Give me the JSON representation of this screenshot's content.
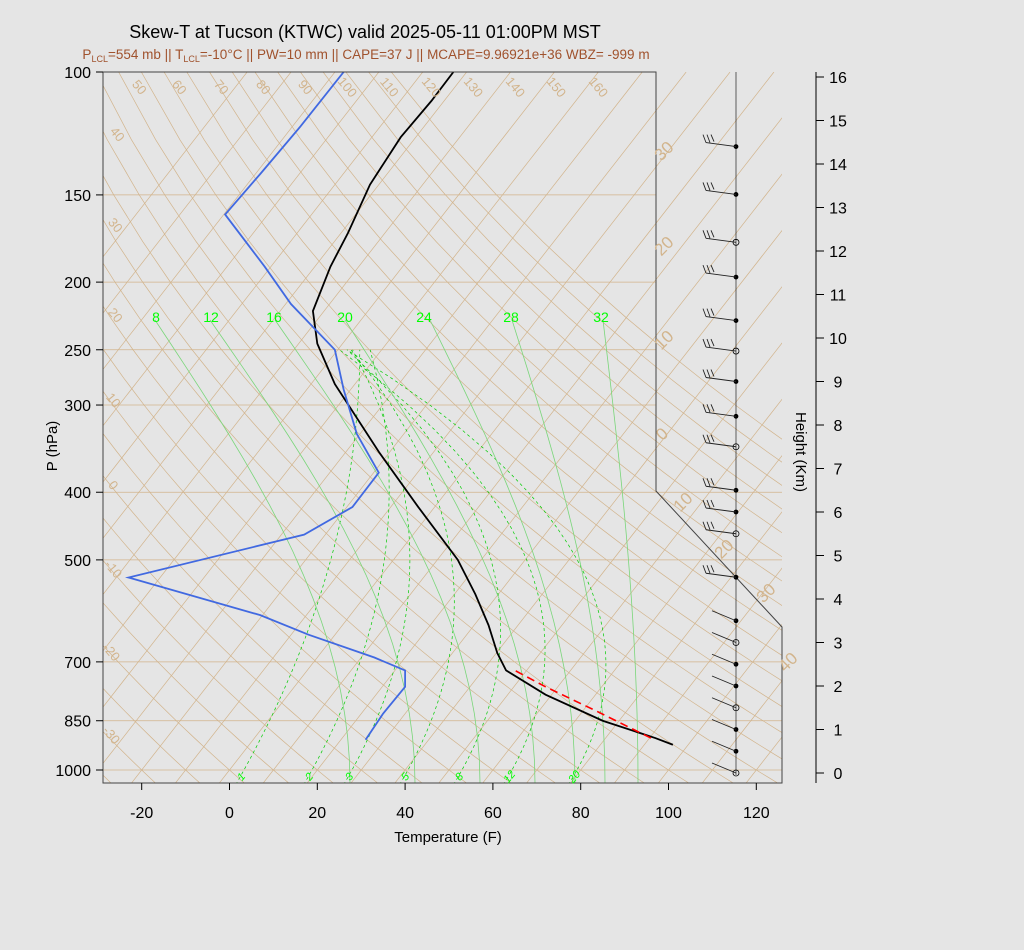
{
  "colors": {
    "background": "#e5e5e5",
    "isotherm": "#d2b48c",
    "isobar": "#d2b48c",
    "dry_adiabat": "#d2b48c",
    "moist_adiabat": "#7ad67a",
    "mixing_ratio": "#00cc00",
    "temperature": "#000000",
    "dewpoint": "#4169e1",
    "parcel": "#ff0000",
    "subtitle": "#a0522d"
  },
  "chart_data": {
    "type": "line",
    "title": "Skew-T at Tucson (KTWC) valid 2025-05-11 01:00PM MST",
    "subtitle": {
      "p_lcl_sym": "P",
      "p_lcl_sub": "LCL",
      "p_lcl_val": "=554 mb",
      "sep1": " || ",
      "t_lcl_sym": "T",
      "t_lcl_sub": "LCL",
      "t_lcl_val": "=-10°C",
      "rest": " || PW=10 mm || CAPE=37 J || MCAPE=9.96921e+36 WBZ= -999 m"
    },
    "xlabel": "Temperature (F)",
    "ylabel": "P (hPa)",
    "y2label": "Height (Km)",
    "x_ticks": [
      "-20",
      "0",
      "20",
      "40",
      "60",
      "80",
      "100",
      "120"
    ],
    "x_tick_values": [
      -20,
      0,
      20,
      40,
      60,
      80,
      100,
      120
    ],
    "y_ticks": [
      "100",
      "150",
      "200",
      "250",
      "300",
      "400",
      "500",
      "700",
      "850",
      "1000"
    ],
    "y_tick_values": [
      100,
      150,
      200,
      250,
      300,
      400,
      500,
      700,
      850,
      1000
    ],
    "height_ticks": [
      "0",
      "1",
      "2",
      "3",
      "4",
      "5",
      "6",
      "7",
      "8",
      "9",
      "10",
      "11",
      "12",
      "13",
      "14",
      "15",
      "16"
    ],
    "height_tick_values": [
      0,
      1,
      2,
      3,
      4,
      5,
      6,
      7,
      8,
      9,
      10,
      11,
      12,
      13,
      14,
      15,
      16
    ],
    "xlim": [
      -28,
      125
    ],
    "ylim": [
      1050,
      100
    ],
    "isotherm_labels": [
      "50",
      "60",
      "70",
      "80",
      "90",
      "100",
      "110",
      "120",
      "130",
      "140",
      "150",
      "160",
      "40",
      "30",
      "20",
      "10",
      "0",
      "-10",
      "-20",
      "-30"
    ],
    "isotherm_right_labels": [
      "30",
      "20",
      "10",
      "0",
      "10",
      "20",
      "30",
      "40"
    ],
    "mixing_ratio_top_labels": [
      "8",
      "12",
      "16",
      "20",
      "24",
      "28",
      "32"
    ],
    "mixing_ratio_bottom_labels": [
      "1",
      "2",
      "3",
      "5",
      "8",
      "12",
      "20"
    ],
    "series": [
      {
        "name": "temperature",
        "points": [
          [
            101,
            920
          ],
          [
            97,
            900
          ],
          [
            85,
            850
          ],
          [
            72,
            780
          ],
          [
            63,
            720
          ],
          [
            61,
            680
          ],
          [
            59,
            620
          ],
          [
            56,
            560
          ],
          [
            52,
            500
          ],
          [
            43,
            420
          ],
          [
            34,
            350
          ],
          [
            24,
            280
          ],
          [
            20,
            245
          ],
          [
            19,
            220
          ],
          [
            23,
            190
          ],
          [
            27,
            170
          ],
          [
            32,
            145
          ],
          [
            39,
            124
          ],
          [
            46,
            110
          ],
          [
            51,
            100
          ]
        ]
      },
      {
        "name": "dewpoint",
        "points": [
          [
            31,
            905
          ],
          [
            35,
            830
          ],
          [
            40,
            760
          ],
          [
            40,
            720
          ],
          [
            33,
            690
          ],
          [
            18,
            640
          ],
          [
            7,
            600
          ],
          [
            -23,
            530
          ],
          [
            17,
            460
          ],
          [
            28,
            420
          ],
          [
            34,
            375
          ],
          [
            29,
            330
          ],
          [
            26,
            285
          ],
          [
            24,
            250
          ],
          [
            14,
            215
          ],
          [
            8,
            190
          ],
          [
            -1,
            160
          ],
          [
            7,
            140
          ],
          [
            16,
            120
          ],
          [
            26,
            100
          ]
        ]
      },
      {
        "name": "parcel",
        "points": [
          [
            96,
            900
          ],
          [
            83,
            820
          ],
          [
            72,
            760
          ],
          [
            65,
            720
          ]
        ]
      }
    ],
    "wind_barbs": [
      {
        "height": 0.0
      },
      {
        "height": 0.5
      },
      {
        "height": 1.0
      },
      {
        "height": 1.5
      },
      {
        "height": 2.0
      },
      {
        "height": 2.5
      },
      {
        "height": 3.0
      },
      {
        "height": 3.5
      },
      {
        "height": 4.5
      },
      {
        "height": 5.5
      },
      {
        "height": 6.0
      },
      {
        "height": 6.5
      },
      {
        "height": 7.5
      },
      {
        "height": 8.2
      },
      {
        "height": 9.0
      },
      {
        "height": 9.7
      },
      {
        "height": 10.4
      },
      {
        "height": 11.4
      },
      {
        "height": 12.2
      },
      {
        "height": 13.3
      },
      {
        "height": 14.4
      }
    ]
  }
}
